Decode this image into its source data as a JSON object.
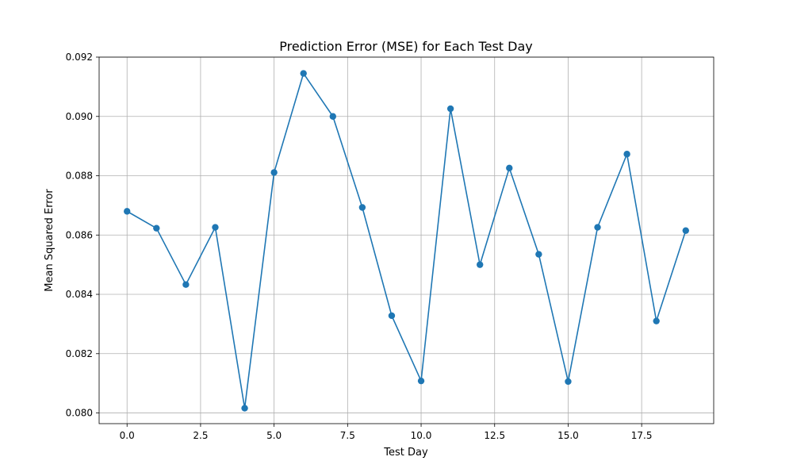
{
  "chart_data": {
    "type": "line",
    "title": "Prediction Error (MSE) for Each Test Day",
    "xlabel": "Test Day",
    "ylabel": "Mean Squared Error",
    "xlim": [
      -0.95,
      19.95
    ],
    "ylim": [
      0.07964,
      0.092
    ],
    "grid": true,
    "x_ticks": [
      0.0,
      2.5,
      5.0,
      7.5,
      10.0,
      12.5,
      15.0,
      17.5
    ],
    "x_tick_labels": [
      "0.0",
      "2.5",
      "5.0",
      "7.5",
      "10.0",
      "12.5",
      "15.0",
      "17.5"
    ],
    "y_ticks": [
      0.08,
      0.082,
      0.084,
      0.086,
      0.088,
      0.09,
      0.092
    ],
    "y_tick_labels": [
      "0.080",
      "0.082",
      "0.084",
      "0.086",
      "0.088",
      "0.090",
      "0.092"
    ],
    "series": [
      {
        "color": "#1f77b4",
        "marker": "circle",
        "x": [
          0,
          1,
          2,
          3,
          4,
          5,
          6,
          7,
          8,
          9,
          10,
          11,
          12,
          13,
          14,
          15,
          16,
          17,
          18,
          19
        ],
        "y": [
          0.0868,
          0.08623,
          0.08433,
          0.08626,
          0.08016,
          0.08811,
          0.09145,
          0.09,
          0.08693,
          0.08328,
          0.08108,
          0.09026,
          0.085,
          0.08826,
          0.08535,
          0.08106,
          0.08626,
          0.08873,
          0.0831,
          0.08615
        ]
      }
    ]
  }
}
